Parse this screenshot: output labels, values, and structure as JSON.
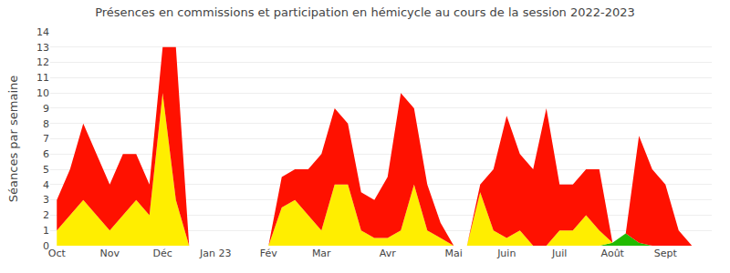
{
  "chart_data": {
    "type": "area",
    "title": "Présences en commissions et participation en hémicycle au cours de la session 2022-2023",
    "y_label": "Séances par semaine",
    "stacked": true,
    "grid": true,
    "categories": [
      "Oct",
      null,
      null,
      null,
      "Nov",
      null,
      null,
      null,
      "Déc",
      null,
      null,
      null,
      "Jan 23",
      null,
      null,
      null,
      "Fév",
      null,
      null,
      null,
      "Mar",
      null,
      null,
      null,
      null,
      "Avr",
      null,
      null,
      null,
      null,
      "Mai",
      null,
      null,
      null,
      "Juin",
      null,
      null,
      null,
      "Juil",
      null,
      null,
      null,
      "Août",
      null,
      null,
      null,
      "Sept",
      null,
      null,
      null
    ],
    "series": [
      {
        "color": "#22bb00",
        "values": [
          0,
          0,
          0,
          0,
          0,
          0,
          0,
          0,
          0,
          0,
          0,
          0,
          0,
          0,
          0,
          0,
          0,
          0,
          0,
          0,
          0,
          0,
          0,
          0,
          0,
          0,
          0,
          0,
          0,
          0,
          0,
          0,
          0,
          0,
          0,
          0,
          0,
          0,
          0,
          0,
          0,
          0,
          0.2,
          0.8,
          0.2,
          0,
          0,
          0,
          0,
          0
        ]
      },
      {
        "color": "#ffee00",
        "values": [
          1,
          2,
          3,
          2,
          1,
          2,
          3,
          2,
          10,
          3,
          0,
          0,
          0,
          0,
          0,
          0,
          0,
          2.5,
          3,
          2,
          1,
          4,
          4,
          1,
          0.5,
          0.5,
          1,
          4,
          1,
          0.5,
          0,
          0,
          3.5,
          1,
          0.5,
          1,
          0,
          0,
          1,
          1,
          2,
          1,
          0,
          0,
          0,
          0,
          0,
          0,
          0,
          0
        ]
      },
      {
        "color": "#ff1100",
        "values": [
          2,
          3,
          5,
          4,
          3,
          4,
          3,
          2,
          3,
          10,
          0,
          0,
          0,
          0,
          0,
          0,
          0,
          2,
          2,
          3,
          5,
          5,
          4,
          2.5,
          2.5,
          4,
          9,
          5,
          3,
          1,
          0,
          0,
          0.5,
          4,
          8,
          5,
          5,
          9,
          3,
          3,
          3,
          4,
          0,
          0,
          7,
          5,
          4,
          1,
          0,
          0
        ]
      }
    ],
    "ylim": [
      0,
      14
    ],
    "yticks": [
      0,
      1,
      2,
      3,
      4,
      5,
      6,
      7,
      8,
      9,
      10,
      11,
      12,
      13,
      14
    ]
  }
}
